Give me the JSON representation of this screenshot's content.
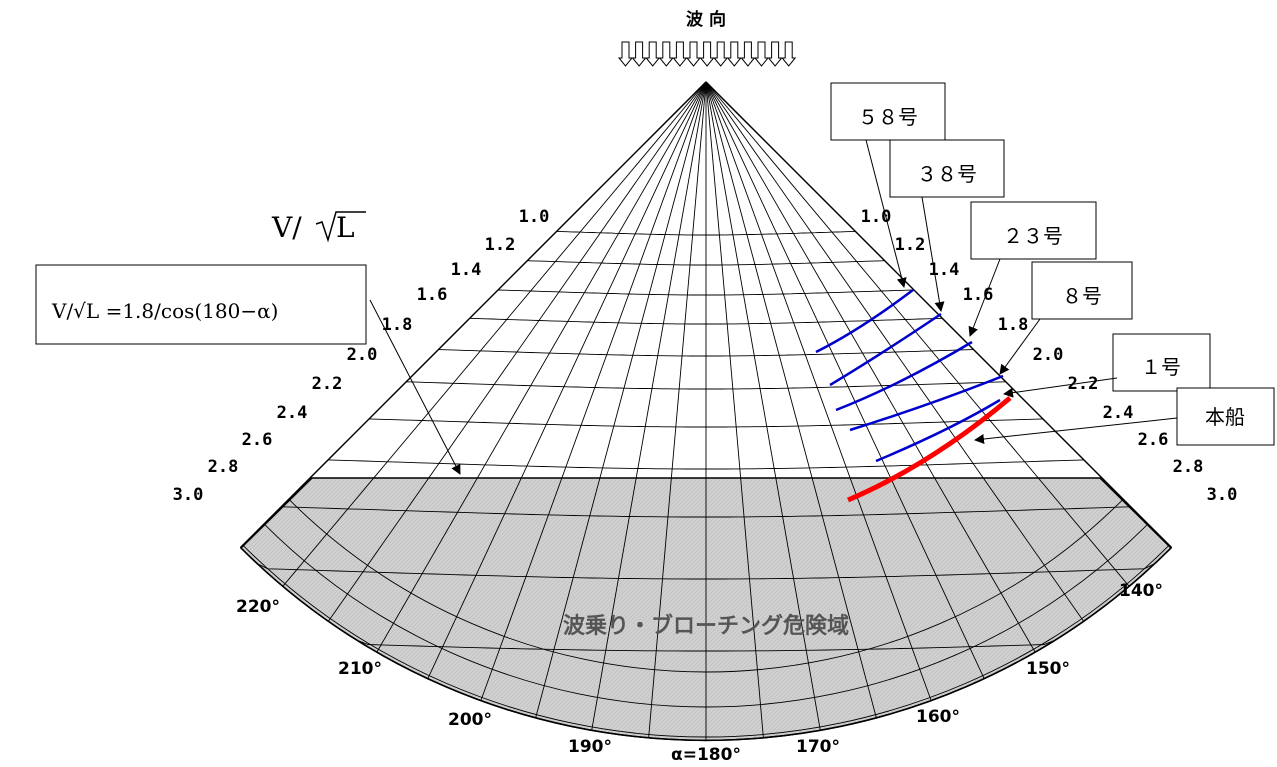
{
  "wave_direction": {
    "label": "波 向"
  },
  "axis_title": "V/√L",
  "speed_ticks": [
    "1.0",
    "1.2",
    "1.4",
    "1.6",
    "1.8",
    "2.0",
    "2.2",
    "2.4",
    "2.6",
    "2.8",
    "3.0"
  ],
  "angle_ticks": [
    {
      "deg": 220,
      "label": "220°"
    },
    {
      "deg": 210,
      "label": "210°"
    },
    {
      "deg": 200,
      "label": "200°"
    },
    {
      "deg": 190,
      "label": "190°"
    },
    {
      "deg": 180,
      "label": "α=180°"
    },
    {
      "deg": 170,
      "label": "170°"
    },
    {
      "deg": 160,
      "label": "160°"
    },
    {
      "deg": 150,
      "label": "150°"
    },
    {
      "deg": 140,
      "label": "140°"
    }
  ],
  "formula_box": {
    "label": "V/√L =1.8/cos(180−α)"
  },
  "danger_region": {
    "label": "波乗り・ブローチング危険域",
    "color": "#d0d0d0"
  },
  "ships": [
    {
      "name": "５８号",
      "speed": 1.55,
      "deg_from": 167.5,
      "deg_to": 160.5,
      "color": "#0000cc"
    },
    {
      "name": "３８号",
      "speed": 1.78,
      "deg_from": 167,
      "deg_to": 157,
      "color": "#0000cc"
    },
    {
      "name": "２３号",
      "speed": 2.0,
      "deg_from": 166.5,
      "deg_to": 155,
      "color": "#0000cc"
    },
    {
      "name": "８号",
      "speed": 2.27,
      "deg_from": 166.5,
      "deg_to": 153.5,
      "color": "#0000cc"
    },
    {
      "name": "１号",
      "speed": 2.5,
      "deg_from": 166,
      "deg_to": 152,
      "color": "#0000cc"
    },
    {
      "name": "本船",
      "speed": 2.63,
      "deg_from": 166,
      "deg_to": 151.5,
      "color": "#ff0000"
    }
  ]
}
